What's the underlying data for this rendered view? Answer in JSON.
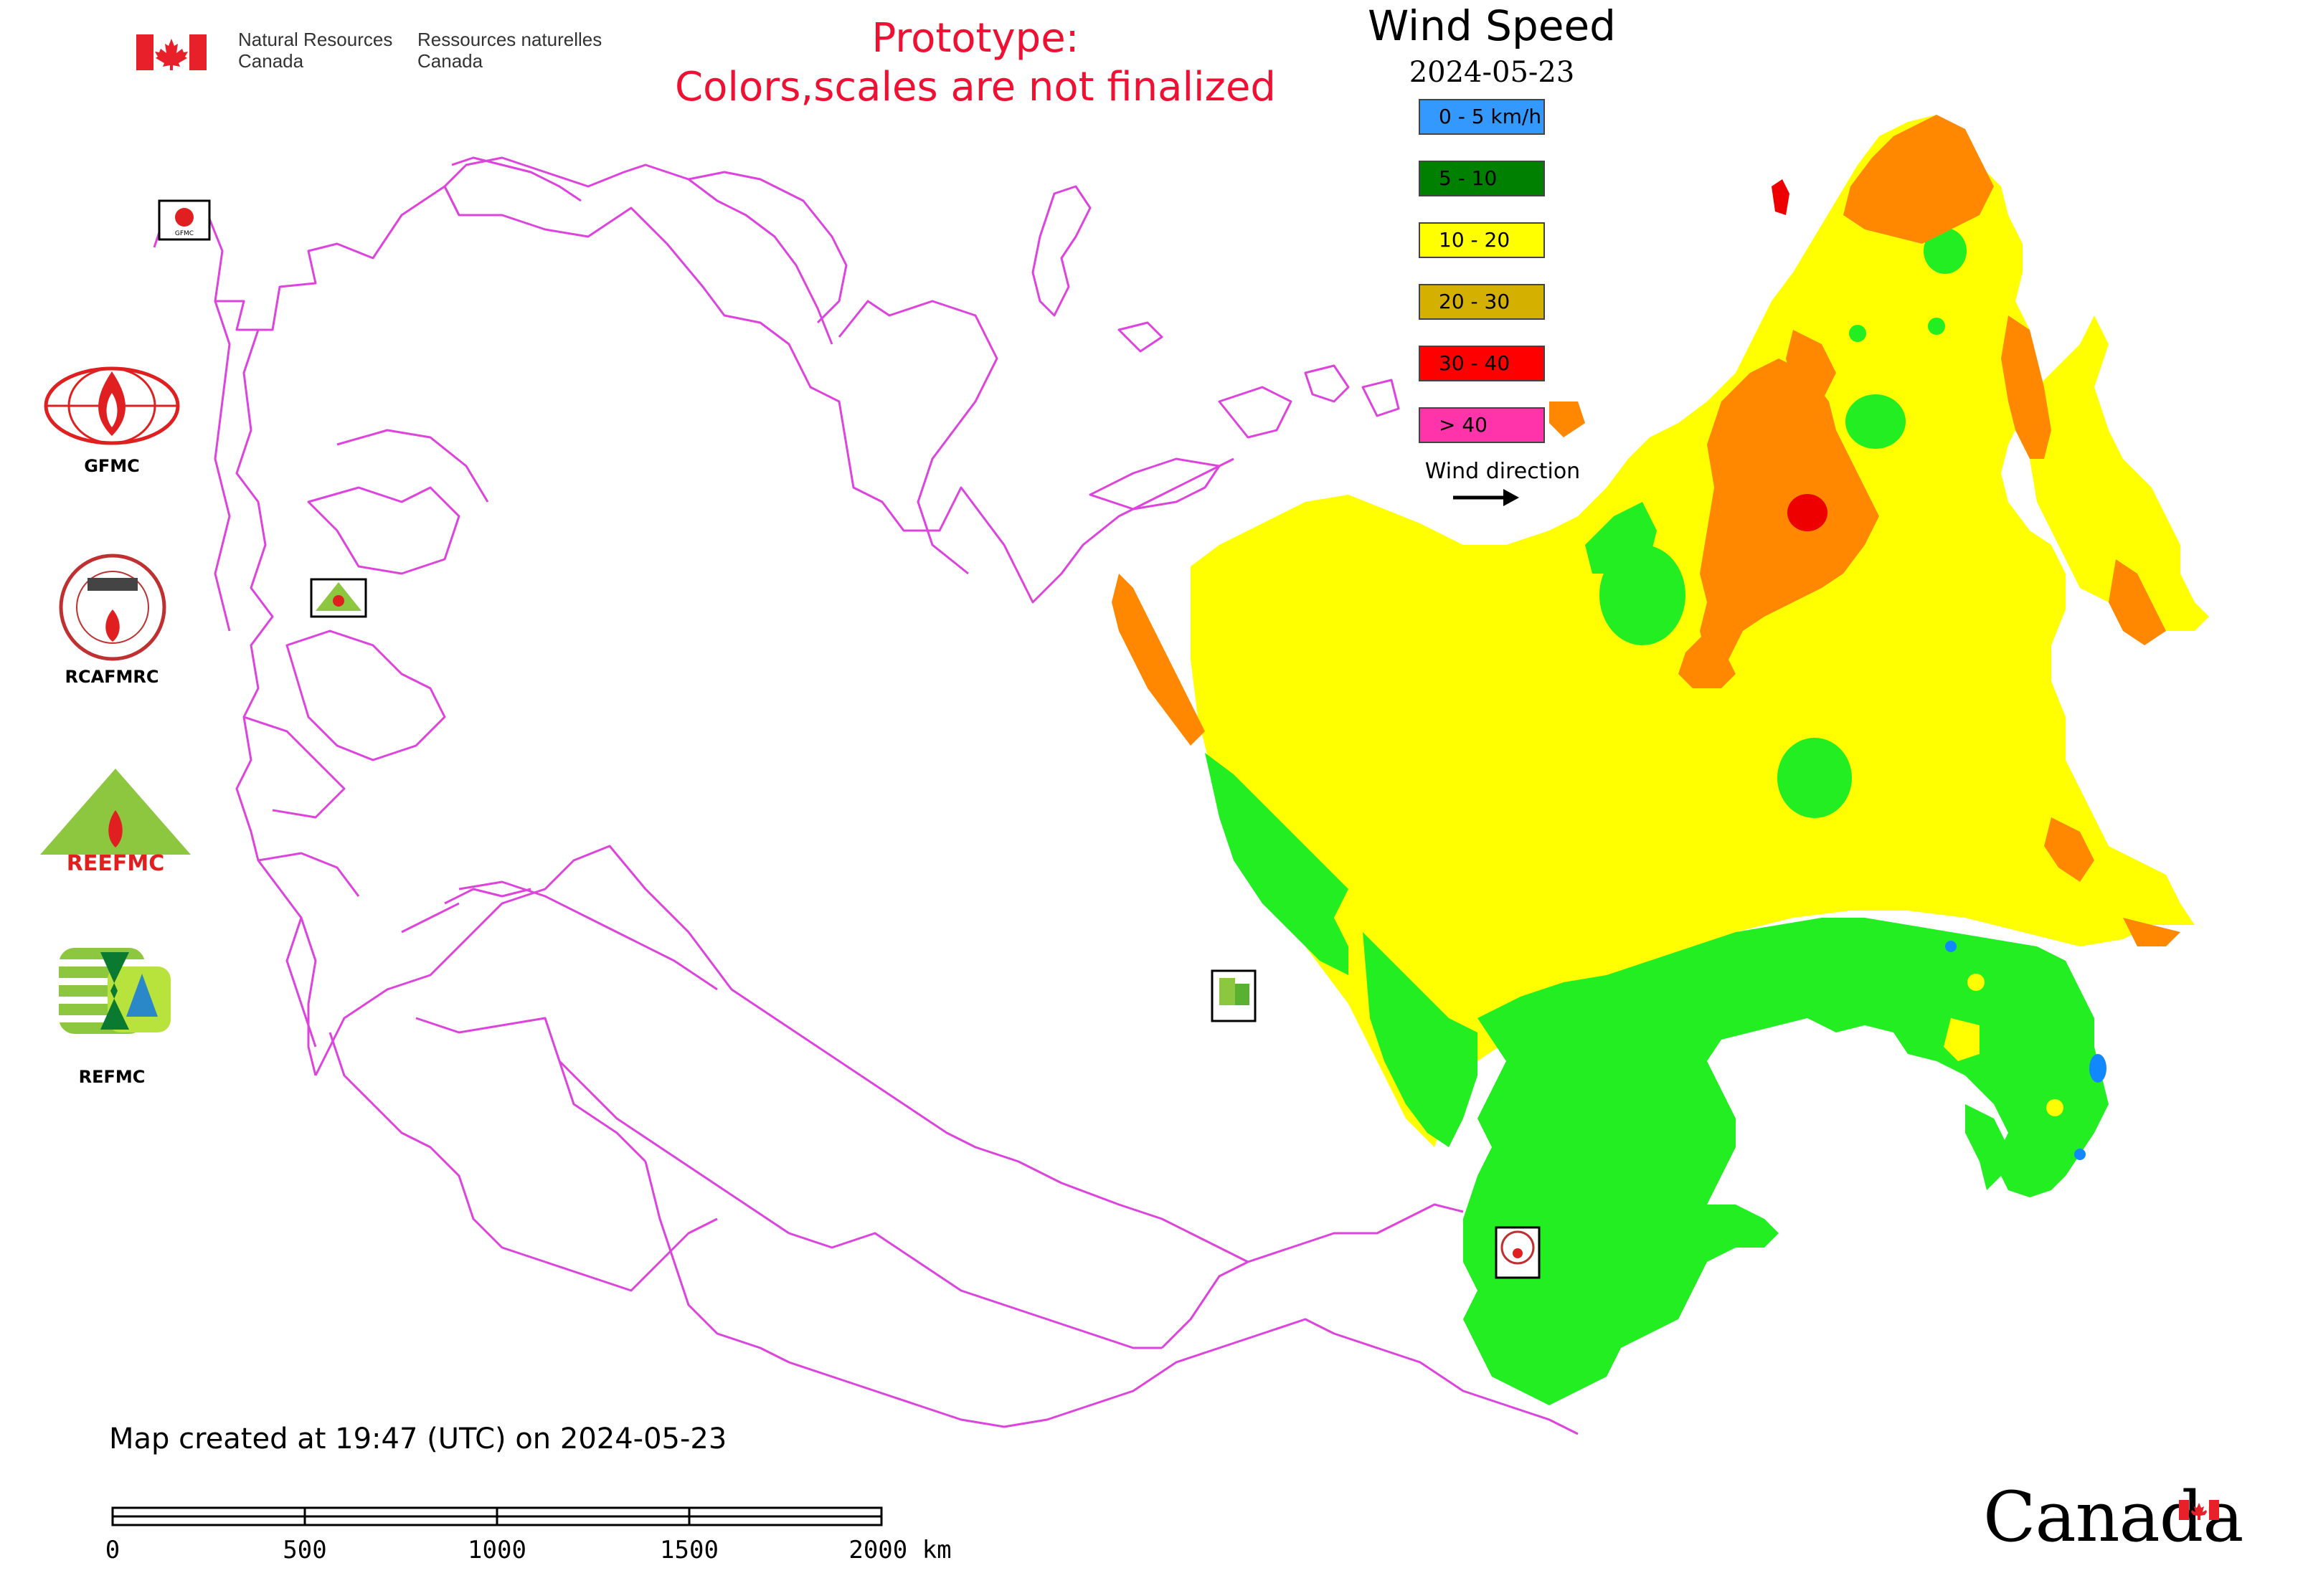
{
  "header": {
    "nrcan_en_line1": "Natural Resources",
    "nrcan_en_line2": "Canada",
    "nrcan_fr_line1": "Ressources naturelles",
    "nrcan_fr_line2": "Canada",
    "prototype_line1": "Prototype:",
    "prototype_line2": "Colors,scales are not finalized"
  },
  "legend": {
    "title": "Wind Speed",
    "date": "2024-05-23",
    "items": [
      {
        "label": "0 - 5 km/h",
        "color": "#3399ff"
      },
      {
        "label": "5 - 10",
        "color": "#008000"
      },
      {
        "label": "10 - 20",
        "color": "#ffff00"
      },
      {
        "label": "20 - 30",
        "color": "#d4b000"
      },
      {
        "label": "30 - 40",
        "color": "#ff0000"
      },
      {
        "label": "> 40",
        "color": "#ff33aa"
      }
    ],
    "wind_direction_label": "Wind direction"
  },
  "logos": {
    "gfmc": "GFMC",
    "rcafmrc": "RCAFMRC",
    "reefmc_logo_text": "REEFMC",
    "refmc": "REFMC"
  },
  "footer": {
    "created": "Map created at 19:47 (UTC) on 2024-05-23",
    "scale_ticks": [
      "0",
      "500",
      "1000",
      "1500",
      "2000 km"
    ],
    "wordmark": "Canada"
  },
  "colors": {
    "border": "#dd44dd",
    "zone_yellow": "#ffff00",
    "zone_green": "#22ee22",
    "zone_orange": "#ff8800",
    "zone_red": "#ee0000",
    "zone_blue": "#1188ff",
    "prototype_text": "#ee1133"
  }
}
